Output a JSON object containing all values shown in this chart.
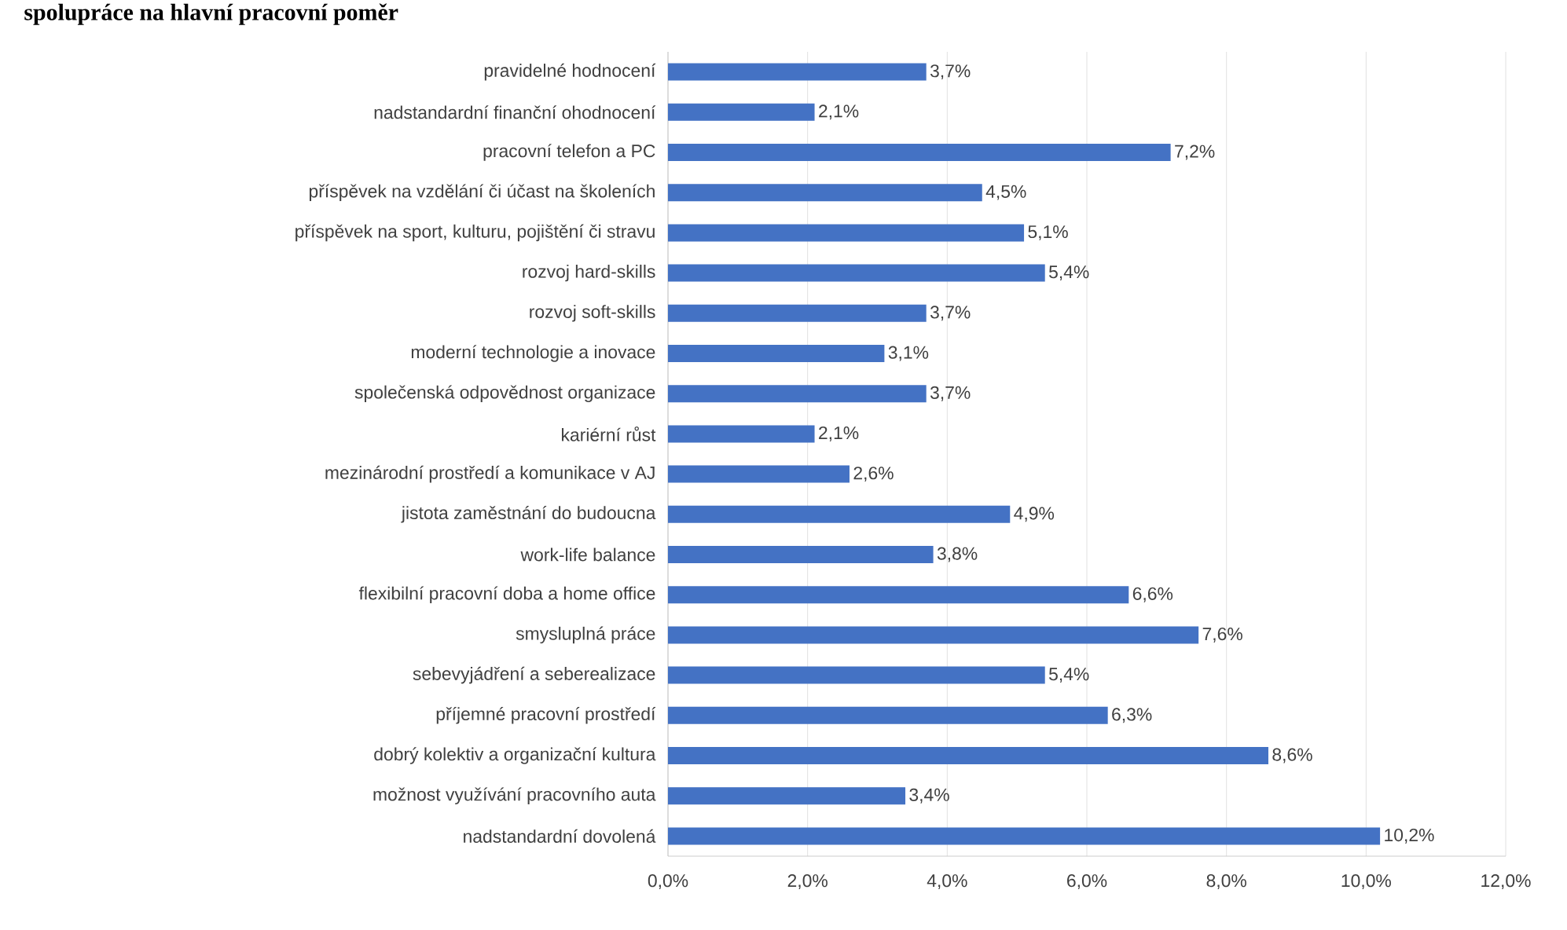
{
  "chart_data": {
    "type": "bar",
    "orientation": "horizontal",
    "title": "spolupráce na hlavní pracovní poměr",
    "categories": [
      "pravidelné hodnocení",
      "nadstandardní finanční ohodnocení",
      "pracovní telefon a PC",
      "příspěvek na vzdělání či účast na školeních",
      "příspěvek na sport, kulturu, pojištění či stravu",
      "rozvoj hard-skills",
      "rozvoj soft-skills",
      "moderní technologie a inovace",
      "společenská odpovědnost organizace",
      "kariérní růst",
      "mezinárodní prostředí a komunikace v AJ",
      "jistota zaměstnání do budoucna",
      "work-life balance",
      "flexibilní pracovní doba a home office",
      "smysluplná práce",
      "sebevyjádření a seberealizace",
      "příjemné pracovní prostředí",
      "dobrý kolektiv a organizační kultura",
      "možnost využívání pracovního auta",
      "nadstandardní dovolená"
    ],
    "values": [
      3.7,
      2.1,
      7.2,
      4.5,
      5.1,
      5.4,
      3.7,
      3.1,
      3.7,
      2.1,
      2.6,
      4.9,
      3.8,
      6.6,
      7.6,
      5.4,
      6.3,
      8.6,
      3.4,
      10.2
    ],
    "value_labels": [
      "3,7%",
      "2,1%",
      "7,2%",
      "4,5%",
      "5,1%",
      "5,4%",
      "3,7%",
      "3,1%",
      "3,7%",
      "2,1%",
      "2,6%",
      "4,9%",
      "3,8%",
      "6,6%",
      "7,6%",
      "5,4%",
      "6,3%",
      "8,6%",
      "3,4%",
      "10,2%"
    ],
    "color": "#4472c4",
    "xlim": [
      0,
      12
    ],
    "xticks": [
      {
        "value": 0,
        "label": "0,0%"
      },
      {
        "value": 2,
        "label": "2,0%"
      },
      {
        "value": 4,
        "label": "4,0%"
      },
      {
        "value": 6,
        "label": "6,0%"
      },
      {
        "value": 8,
        "label": "8,0%"
      },
      {
        "value": 10,
        "label": "10,0%"
      },
      {
        "value": 12,
        "label": "12,0%"
      }
    ],
    "grid": "x"
  }
}
